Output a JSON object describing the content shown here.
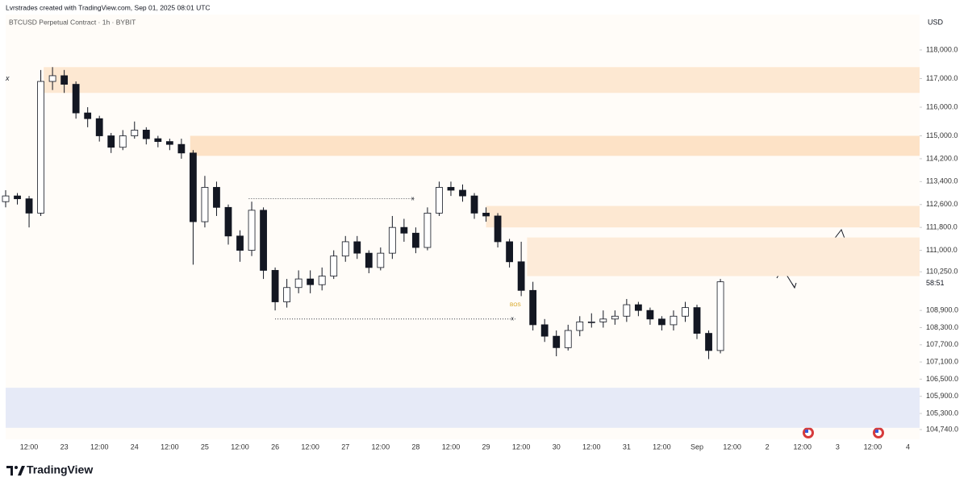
{
  "header": {
    "author_line": "Lvrstrades created with TradingView.com, Sep 01, 2025 08:01 UTC",
    "symbol": "BTCUSD Perpetual Contract · 1h · BYBIT",
    "currency": "USD"
  },
  "footer": {
    "brand": "TradingView"
  },
  "chart_data": {
    "type": "candlestick",
    "up_color": "#ffffff",
    "down_color": "#131722",
    "outline_color": "#131722",
    "xlim": [
      4,
      316
    ],
    "ylim": [
      104400,
      118900
    ],
    "xticks": [
      {
        "value": 12,
        "label": "12:00"
      },
      {
        "value": 24,
        "label": "23"
      },
      {
        "value": 36,
        "label": "12:00"
      },
      {
        "value": 48,
        "label": "24"
      },
      {
        "value": 60,
        "label": "12:00"
      },
      {
        "value": 72,
        "label": "25"
      },
      {
        "value": 84,
        "label": "12:00"
      },
      {
        "value": 96,
        "label": "26"
      },
      {
        "value": 108,
        "label": "12:00"
      },
      {
        "value": 120,
        "label": "27"
      },
      {
        "value": 132,
        "label": "12:00"
      },
      {
        "value": 144,
        "label": "28"
      },
      {
        "value": 156,
        "label": "12:00"
      },
      {
        "value": 168,
        "label": "29"
      },
      {
        "value": 180,
        "label": "12:00"
      },
      {
        "value": 192,
        "label": "30"
      },
      {
        "value": 204,
        "label": "12:00"
      },
      {
        "value": 216,
        "label": "31"
      },
      {
        "value": 228,
        "label": "12:00"
      },
      {
        "value": 240,
        "label": "Sep"
      },
      {
        "value": 252,
        "label": "12:00"
      },
      {
        "value": 264,
        "label": "2"
      },
      {
        "value": 276,
        "label": "12:00"
      },
      {
        "value": 288,
        "label": "3"
      },
      {
        "value": 300,
        "label": "12:00"
      },
      {
        "value": 312,
        "label": "4"
      }
    ],
    "yticks": [
      {
        "value": 118000,
        "label": "118,000.0"
      },
      {
        "value": 117000,
        "label": "117,000.0"
      },
      {
        "value": 116000,
        "label": "116,000.0"
      },
      {
        "value": 115000,
        "label": "115,000.0"
      },
      {
        "value": 114200,
        "label": "114,200.0"
      },
      {
        "value": 113400,
        "label": "113,400.0"
      },
      {
        "value": 112600,
        "label": "112,600.0"
      },
      {
        "value": 111800,
        "label": "111,800.0"
      },
      {
        "value": 111000,
        "label": "111,000.0"
      },
      {
        "value": 110250,
        "label": "110,250.0"
      },
      {
        "value": 108900,
        "label": "108,900.0"
      },
      {
        "value": 108300,
        "label": "108,300.0"
      },
      {
        "value": 107700,
        "label": "107,700.0"
      },
      {
        "value": 107100,
        "label": "107,100.0"
      },
      {
        "value": 106500,
        "label": "106,500.0"
      },
      {
        "value": 105900,
        "label": "105,900.0"
      },
      {
        "value": 105300,
        "label": "105,300.0"
      },
      {
        "value": 104740,
        "label": "104,740.0"
      }
    ],
    "x": [
      4,
      8,
      12,
      16,
      20,
      24,
      28,
      32,
      36,
      40,
      44,
      48,
      52,
      56,
      60,
      64,
      68,
      72,
      76,
      80,
      84,
      88,
      92,
      96,
      100,
      104,
      108,
      112,
      116,
      120,
      124,
      128,
      132,
      136,
      140,
      144,
      148,
      152,
      156,
      160,
      164,
      168,
      172,
      176,
      180,
      184,
      188,
      192,
      196,
      200,
      204,
      208,
      212,
      216,
      220,
      224,
      228,
      232,
      236,
      240,
      244,
      248
    ],
    "open": [
      112700,
      112900,
      112800,
      112300,
      116900,
      117100,
      116800,
      115800,
      115600,
      115000,
      114600,
      115000,
      115200,
      114900,
      114800,
      114700,
      114400,
      112000,
      113200,
      112500,
      111500,
      111000,
      112400,
      110300,
      109200,
      109700,
      110000,
      109800,
      110100,
      110800,
      111300,
      110900,
      110400,
      110900,
      111800,
      111600,
      111100,
      112300,
      113200,
      113100,
      112900,
      112300,
      112200,
      111300,
      110600,
      109600,
      108400,
      108000,
      107600,
      108200,
      108500,
      108500,
      108600,
      108700,
      109100,
      108900,
      108600,
      108400,
      108700,
      109000,
      108100,
      107500
    ],
    "high": [
      113100,
      113000,
      112900,
      117300,
      117400,
      117300,
      116900,
      116000,
      115700,
      115100,
      115200,
      115500,
      115300,
      115000,
      114900,
      114900,
      114500,
      113600,
      113400,
      112600,
      111700,
      112700,
      112500,
      110400,
      110000,
      110300,
      110300,
      110400,
      111000,
      111500,
      111500,
      111000,
      111100,
      112200,
      112100,
      111800,
      112500,
      113400,
      113400,
      113300,
      113000,
      112500,
      112300,
      111400,
      111300,
      109900,
      108600,
      108200,
      108400,
      108700,
      108800,
      108900,
      108900,
      109300,
      109200,
      109000,
      108700,
      108900,
      109200,
      109100,
      108200,
      110000
    ],
    "low": [
      112500,
      112600,
      111800,
      112200,
      116600,
      116500,
      115600,
      115300,
      114800,
      114400,
      114500,
      114900,
      114700,
      114600,
      114500,
      114200,
      110500,
      111800,
      112200,
      111200,
      110600,
      110800,
      110000,
      108900,
      109000,
      109500,
      109500,
      109600,
      110000,
      110600,
      110700,
      110200,
      110300,
      110700,
      111300,
      110900,
      111000,
      112200,
      112900,
      112700,
      112100,
      112000,
      111100,
      110400,
      109400,
      108200,
      107800,
      107300,
      107500,
      108000,
      108300,
      108300,
      108400,
      108500,
      108700,
      108400,
      108200,
      108200,
      108500,
      107900,
      107200,
      107400
    ],
    "close": [
      112900,
      112800,
      112300,
      116900,
      117100,
      116800,
      115800,
      115600,
      115000,
      114600,
      115000,
      115200,
      114900,
      114800,
      114700,
      114400,
      112000,
      113200,
      112500,
      111500,
      111000,
      112400,
      110300,
      109200,
      109700,
      110000,
      109800,
      110100,
      110800,
      111300,
      110900,
      110400,
      110900,
      111800,
      111600,
      111100,
      112300,
      113200,
      113100,
      112900,
      112300,
      112200,
      111300,
      110600,
      109600,
      108400,
      108000,
      107600,
      108200,
      108500,
      108500,
      108600,
      108700,
      109100,
      108900,
      108600,
      108400,
      108700,
      109000,
      108100,
      107500,
      109900
    ],
    "countdown": "58:51",
    "zones": [
      {
        "from": 17,
        "top": 117400,
        "bottom": 116500,
        "color": "#fde8d2"
      },
      {
        "from": 67,
        "top": 115000,
        "bottom": 114300,
        "color": "#fde2c6"
      },
      {
        "from": 168,
        "top": 112550,
        "bottom": 111800,
        "color": "#fde8d2"
      },
      {
        "from": 182,
        "top": 111450,
        "bottom": 110100,
        "color": "#fdebd9"
      },
      {
        "from": 4,
        "top": 106200,
        "bottom": 104800,
        "color": "#e6eaf7"
      }
    ],
    "lines": [
      {
        "price": 112800,
        "from": 87,
        "to": 144,
        "label": "x"
      },
      {
        "price": 108600,
        "from": 96,
        "to": 178,
        "label": "x"
      }
    ],
    "annotations": [
      {
        "text": "x",
        "x": 4,
        "y": 117000
      },
      {
        "text": "BOS",
        "x": 178,
        "y": 109100
      }
    ]
  }
}
